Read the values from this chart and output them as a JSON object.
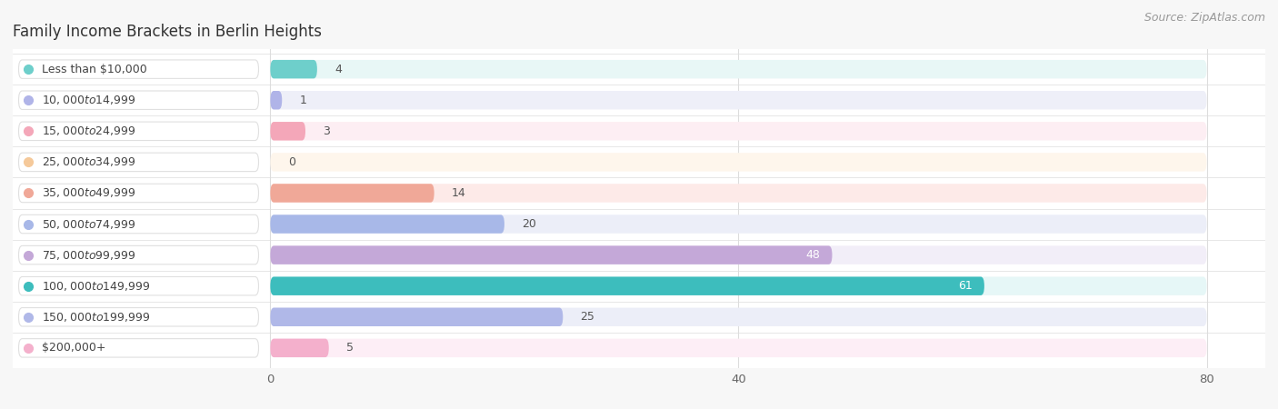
{
  "title": "Family Income Brackets in Berlin Heights",
  "source": "Source: ZipAtlas.com",
  "categories": [
    "Less than $10,000",
    "$10,000 to $14,999",
    "$15,000 to $24,999",
    "$25,000 to $34,999",
    "$35,000 to $49,999",
    "$50,000 to $74,999",
    "$75,000 to $99,999",
    "$100,000 to $149,999",
    "$150,000 to $199,999",
    "$200,000+"
  ],
  "values": [
    4,
    1,
    3,
    0,
    14,
    20,
    48,
    61,
    25,
    5
  ],
  "bar_colors": [
    "#6ecfcb",
    "#b0b4e8",
    "#f4a7b9",
    "#f5c99a",
    "#f0a898",
    "#a8b8e8",
    "#c4a8d8",
    "#3dbdbd",
    "#b0b8e8",
    "#f4b0cc"
  ],
  "bar_bg_colors": [
    "#e8f7f6",
    "#eeeff8",
    "#fdeef3",
    "#fef6ec",
    "#fdeae8",
    "#eceef8",
    "#f2eef8",
    "#e6f7f7",
    "#eceef8",
    "#fdeef6"
  ],
  "dot_colors": [
    "#6ecfcb",
    "#b0b4e8",
    "#f4a7b9",
    "#f5c99a",
    "#f0a898",
    "#a8b8e8",
    "#c4a8d8",
    "#3dbdbd",
    "#b0b8e8",
    "#f4b0cc"
  ],
  "xlim_min": -22,
  "xlim_max": 85,
  "data_min": 0,
  "data_max": 80,
  "xticks": [
    0,
    40,
    80
  ],
  "label_color_outside": "#555555",
  "label_color_inside": "#ffffff",
  "background_color": "#f7f7f7",
  "plot_bg_color": "#ffffff",
  "title_fontsize": 12,
  "source_fontsize": 9,
  "bar_label_fontsize": 9,
  "cat_label_fontsize": 9
}
